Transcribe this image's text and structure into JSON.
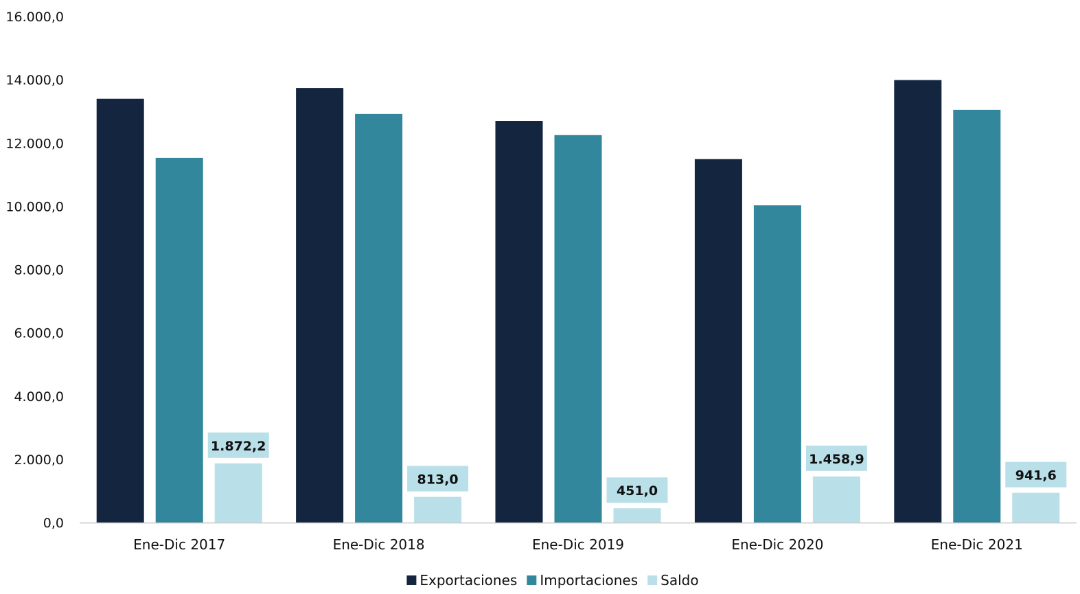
{
  "chart_data": {
    "type": "bar",
    "title": "",
    "xlabel": "",
    "ylabel": "",
    "categories": [
      "Ene-Dic 2017",
      "Ene-Dic 2018",
      "Ene-Dic 2019",
      "Ene-Dic 2020",
      "Ene-Dic 2021"
    ],
    "series": [
      {
        "name": "Exportaciones",
        "color": "#13253f",
        "values": [
          13400.0,
          13740.0,
          12700.0,
          11490.0,
          13990.0
        ]
      },
      {
        "name": "Importaciones",
        "color": "#33879c",
        "values": [
          11530.0,
          12920.0,
          12250.0,
          10030.0,
          13050.0
        ]
      },
      {
        "name": "Saldo",
        "color": "#b9dfe8",
        "values": [
          1872.2,
          813.0,
          451.0,
          1458.9,
          941.6
        ],
        "data_labels": [
          "1.872,2",
          "813,0",
          "451,0",
          "1.458,9",
          "941,6"
        ]
      }
    ],
    "ylim": [
      0,
      16000
    ],
    "yticks": [
      0,
      2000,
      4000,
      6000,
      8000,
      10000,
      12000,
      14000,
      16000
    ],
    "ytick_labels": [
      "0,0",
      "2.000,0",
      "4.000,0",
      "6.000,0",
      "8.000,0",
      "10.000,0",
      "12.000,0",
      "14.000,0",
      "16.000,0"
    ],
    "grid": false,
    "legend_position": "bottom-center"
  }
}
